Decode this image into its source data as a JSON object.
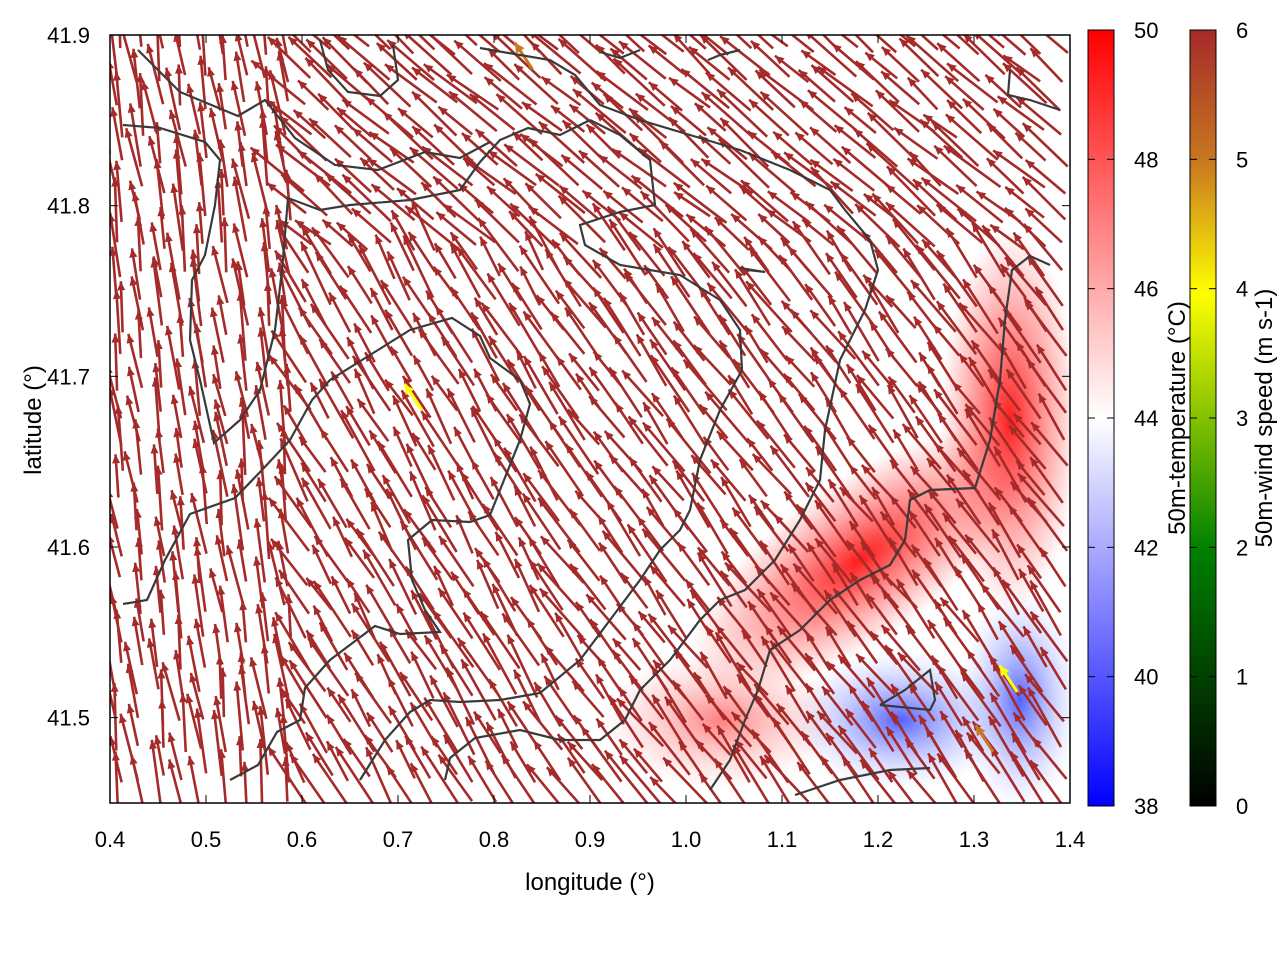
{
  "chart_data": {
    "type": "vector-field",
    "xlabel": "longitude (°)",
    "ylabel": "latitude (°)",
    "xlim": [
      0.4,
      1.4
    ],
    "ylim": [
      41.45,
      41.9
    ],
    "xticks": [
      "0.4",
      "0.5",
      "0.6",
      "0.7",
      "0.8",
      "0.9",
      "1.0",
      "1.1",
      "1.2",
      "1.3",
      "1.4"
    ],
    "yticks": [
      "41.5",
      "41.6",
      "41.7",
      "41.8",
      "41.9"
    ],
    "background_field": {
      "name": "50m-temperature (°C)",
      "colorbar_ticks": [
        "38",
        "40",
        "42",
        "44",
        "46",
        "48",
        "50"
      ],
      "range": [
        38,
        50
      ],
      "colors": [
        "#0000ff",
        "#ffffff",
        "#ff0000"
      ],
      "warm_zone_note_values": [
        {
          "lon": 1.1,
          "lat": 41.55,
          "temp": 49
        },
        {
          "lon": 1.35,
          "lat": 41.7,
          "temp": 49
        },
        {
          "lon": 1.05,
          "lat": 41.5,
          "temp": 46
        },
        {
          "lon": 1.22,
          "lat": 41.5,
          "temp": 40
        },
        {
          "lon": 1.33,
          "lat": 41.5,
          "temp": 41
        }
      ]
    },
    "vector_field": {
      "name": "50m-wind speed (m s-1)",
      "colorbar_ticks": [
        "0",
        "1",
        "2",
        "3",
        "4",
        "5",
        "6"
      ],
      "range": [
        0,
        6
      ],
      "dominant_speed": 6,
      "dominant_color": "#a52a2a",
      "highlighted_vectors": [
        {
          "lon": 0.725,
          "lat": 41.68,
          "speed": 4.2,
          "color": "#ffff00"
        },
        {
          "lon": 1.345,
          "lat": 41.515,
          "speed": 4.2,
          "color": "#ffff00"
        },
        {
          "lon": 1.32,
          "lat": 41.48,
          "speed": 5.3,
          "color": "#c87820"
        },
        {
          "lon": 0.84,
          "lat": 41.88,
          "speed": 5.4,
          "color": "#c87820"
        }
      ]
    },
    "contour_color": "#3a3a3a",
    "colormap_wind": [
      "#000000",
      "#008000",
      "#ffff00",
      "#c87820",
      "#a52a2a"
    ],
    "grid": false,
    "legend": "none"
  }
}
